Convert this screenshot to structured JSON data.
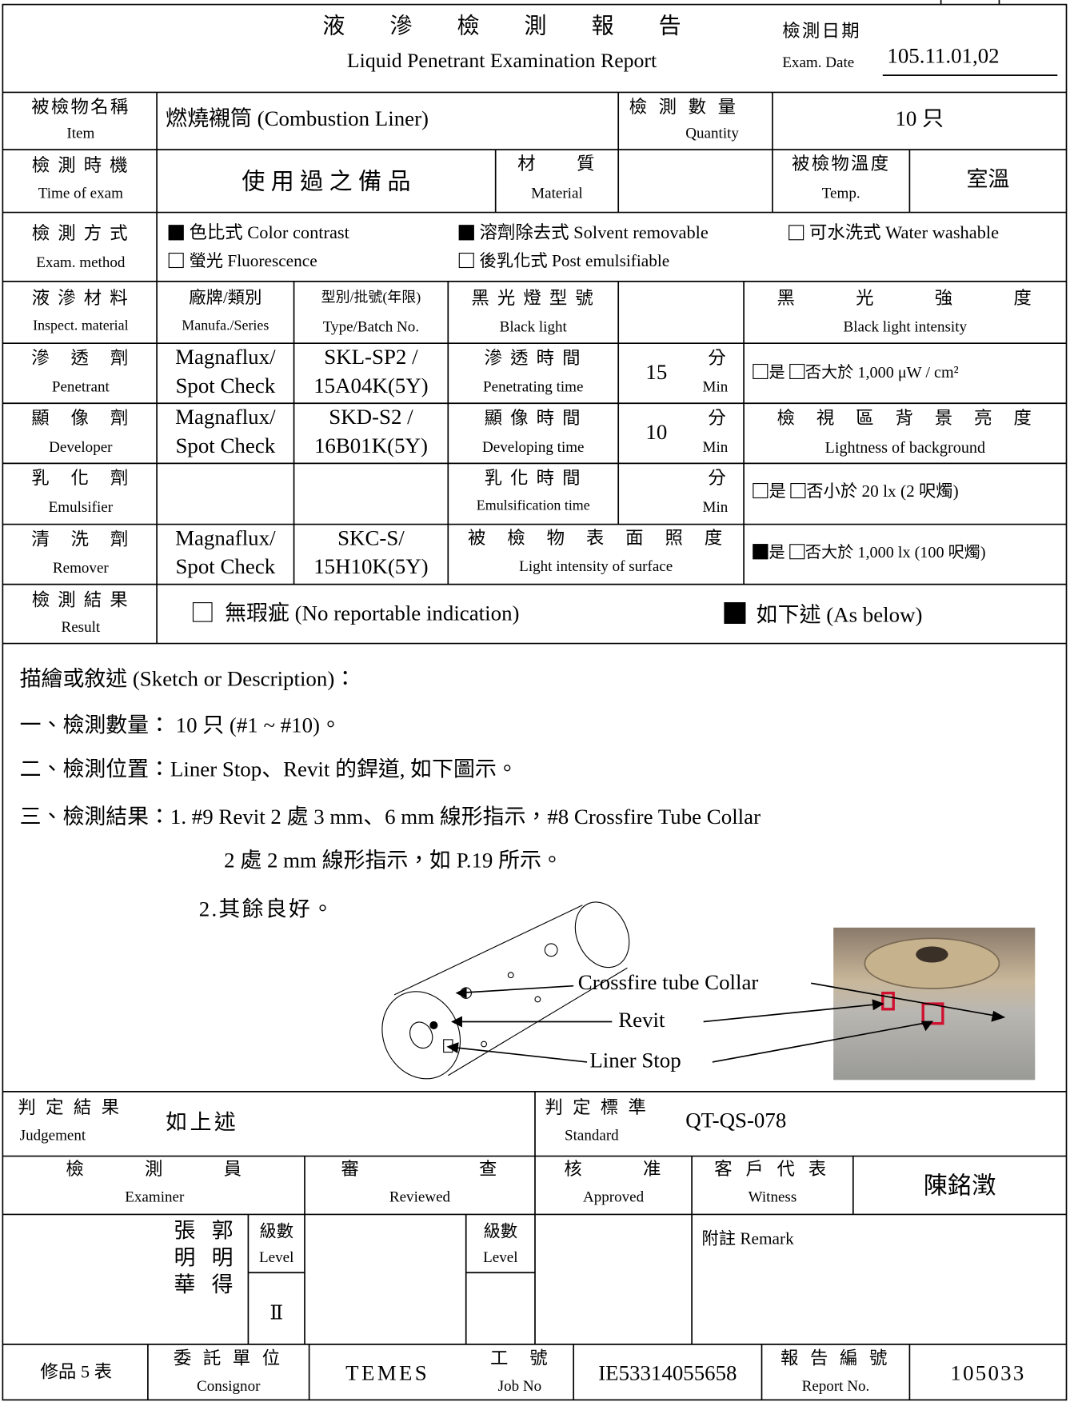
{
  "header": {
    "title_zh": "液　　滲　　檢　　測　　報　　告",
    "title_en": "Liquid Penetrant Examination Report",
    "date_label_zh": "檢測日期",
    "date_label_en": "Exam. Date",
    "date": "105.11.01,02"
  },
  "item": {
    "label_zh": "被檢物名稱",
    "label_en": "Item",
    "value": "燃燒襯筒 (Combustion Liner)",
    "quantity_label_zh": "檢 測 數 量",
    "quantity_label_en": "Quantity",
    "quantity": "10 只"
  },
  "time": {
    "label_zh": "檢 測 時 機",
    "label_en": "Time of exam",
    "value": "使 用 過 之 備 品",
    "material_label_zh": "材　　質",
    "material_label_en": "Material",
    "temp_label_zh": "被檢物溫度",
    "temp_label_en": "Temp.",
    "temp": "室溫"
  },
  "method": {
    "label_zh": "檢 測 方 式",
    "label_en": "Exam. method",
    "options": [
      {
        "text": "色比式 Color contrast",
        "checked": true
      },
      {
        "text": "溶劑除去式 Solvent removable",
        "checked": true
      },
      {
        "text": "可水洗式 Water washable",
        "checked": false
      },
      {
        "text": "螢光 Fluorescence",
        "checked": false
      },
      {
        "text": "後乳化式 Post emulsifiable",
        "checked": false
      }
    ]
  },
  "materials": {
    "header": {
      "label_zh": "液 滲 材 料",
      "label_en": "Inspect. material",
      "brand_zh": "廠牌/類別",
      "brand_en": "Manufa./Series",
      "type_zh": "型別/批號(年限)",
      "type_en": "Type/Batch No.",
      "lamp_zh": "黑 光 燈 型 號",
      "lamp_en": "Black light",
      "intensity_zh": "黑　　　光　　　強　　　度",
      "intensity_en": "Black light intensity"
    },
    "penetrant": {
      "name_zh": "滲　透　劑",
      "name_en": "Penetrant",
      "brand": [
        "Magnaflux/",
        "Spot Check"
      ],
      "type": [
        "SKL-SP2 /",
        "15A04K(5Y)"
      ],
      "time_label_zh": "滲 透 時 間",
      "time_label_en": "Penetrating time",
      "time": "15",
      "unit_zh": "分",
      "unit_en": "Min",
      "yes_checked": false,
      "yes": "是",
      "no_checked": false,
      "no": "否大於 1,000 μW / cm²"
    },
    "developer": {
      "name_zh": "顯　像　劑",
      "name_en": "Developer",
      "brand": [
        "Magnaflux/",
        "Spot Check"
      ],
      "type": [
        "SKD-S2 /",
        "16B01K(5Y)"
      ],
      "time_label_zh": "顯 像 時 間",
      "time_label_en": "Developing time",
      "time": "10",
      "unit_zh": "分",
      "unit_en": "Min",
      "background_zh": "檢　視　區　背　景　亮　度",
      "background_en": "Lightness of background"
    },
    "emulsifier": {
      "name_zh": "乳　化　劑",
      "name_en": "Emulsifier",
      "time_label_zh": "乳 化 時 間",
      "time_label_en": "Emulsification time",
      "unit_zh": "分",
      "unit_en": "Min",
      "yes_checked": false,
      "yes": "是",
      "no_checked": false,
      "no": "否小於 20 lx (2 呎燭)"
    },
    "remover": {
      "name_zh": "清　洗　劑",
      "name_en": "Remover",
      "brand": [
        "Magnaflux/",
        "Spot Check"
      ],
      "type": [
        "SKC-S/",
        "15H10K(5Y)"
      ],
      "surface_zh": "被　檢　物　表　面　照　度",
      "surface_en": "Light intensity of surface",
      "yes_checked": true,
      "yes": "是",
      "no_checked": false,
      "no": "否大於 1,000 lx (100 呎燭)"
    }
  },
  "result": {
    "label_zh": "檢 測 結 果",
    "label_en": "Result",
    "options": [
      {
        "text": "無瑕疵 (No reportable indication)",
        "checked": false
      },
      {
        "text": "如下述 (As below)",
        "checked": true
      }
    ]
  },
  "sketch": {
    "lines": [
      "描繪或敘述 (Sketch or Description)：",
      "一、檢測數量： 10 只 (#1 ~ #10)。",
      "二、檢測位置：Liner Stop、Revit 的銲道, 如下圖示。",
      "三、檢測結果：1. #9 Revit 2 處 3 mm、6 mm 線形指示，#8 Crossfire Tube Collar",
      "2 處 2 mm 線形指示，如 P.19 所示。",
      "2.其餘良好。"
    ],
    "callouts": [
      "Crossfire tube Collar",
      "Revit",
      "Liner Stop"
    ]
  },
  "judgement": {
    "label_zh": "判 定 結 果",
    "label_en": "Judgement",
    "value": "如上述",
    "standard_label_zh": "判 定 標 準",
    "standard_label_en": "Standard",
    "standard": "QT-QS-078"
  },
  "signatures": {
    "examiner_zh": "檢　　　測　　　員",
    "examiner_en": "Examiner",
    "reviewed_zh": "審　　　　　　查",
    "reviewed_en": "Reviewed",
    "approved_zh": "核　　　准",
    "approved_en": "Approved",
    "witness_zh": "客 戶 代 表",
    "witness_en": "Witness",
    "witness_name": "陳銘澂",
    "names": [
      "張明華",
      "郭明得"
    ],
    "level_zh": "級數",
    "level_en": "Level",
    "level": "Ⅱ",
    "remark": "附註 Remark"
  },
  "footer": {
    "form": "修品 5 表",
    "consignor_zh": "委 託 單 位",
    "consignor_en": "Consignor",
    "consignor": "TEMES",
    "job_label_zh": "工　號",
    "job_label_en": "Job No",
    "job": "IE53314055658",
    "report_label_zh": "報 告 編 號",
    "report_label_en": "Report No.",
    "report": "105033"
  }
}
